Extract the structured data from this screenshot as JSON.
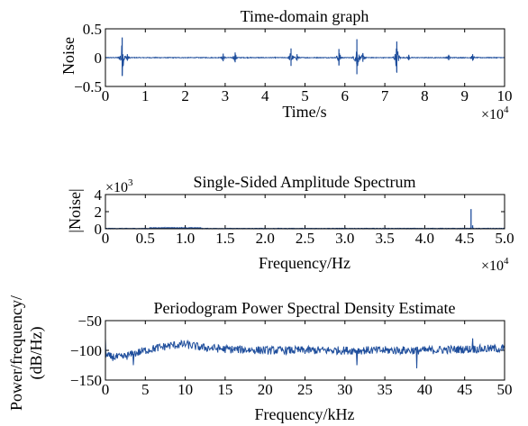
{
  "chart_data": [
    {
      "type": "line",
      "title": "Time-domain graph",
      "xlabel": "Time/s",
      "ylabel": "Noise",
      "xlim": [
        0,
        10
      ],
      "ylim": [
        -0.5,
        0.5
      ],
      "x_ticks": [
        "0",
        "1",
        "2",
        "3",
        "4",
        "5",
        "6",
        "7",
        "8",
        "9",
        "10"
      ],
      "y_ticks": [
        "0.5",
        "0",
        "−0.5"
      ],
      "x_multiplier": "×10",
      "x_multiplier_exp": "4",
      "line_color": "#1f4e9c",
      "grid": false,
      "bursts": [
        {
          "x": 0.42,
          "amp": 0.35
        },
        {
          "x": 0.55,
          "amp": 0.06
        },
        {
          "x": 2.95,
          "amp": 0.07
        },
        {
          "x": 3.25,
          "amp": 0.09
        },
        {
          "x": 4.65,
          "amp": 0.16
        },
        {
          "x": 4.8,
          "amp": 0.06
        },
        {
          "x": 5.85,
          "amp": 0.15
        },
        {
          "x": 6.3,
          "amp": 0.32
        },
        {
          "x": 6.45,
          "amp": 0.08
        },
        {
          "x": 7.3,
          "amp": 0.28
        },
        {
          "x": 7.6,
          "amp": 0.05
        },
        {
          "x": 8.6,
          "amp": 0.05
        },
        {
          "x": 9.2,
          "amp": 0.06
        }
      ]
    },
    {
      "type": "line",
      "title": "Single-Sided Amplitude Spectrum",
      "xlabel": "Frequency/Hz",
      "ylabel": "|Noise|",
      "xlim": [
        0,
        5.0
      ],
      "ylim": [
        0,
        4
      ],
      "x_ticks": [
        "0",
        "0.5",
        "1.0",
        "1.5",
        "2.0",
        "2.5",
        "3.0",
        "3.5",
        "4.0",
        "4.5",
        "5.0"
      ],
      "y_ticks": [
        "4",
        "2",
        "0"
      ],
      "x_multiplier": "×10",
      "x_multiplier_exp": "4",
      "y_multiplier": "×10",
      "y_multiplier_exp": "3",
      "line_color": "#1f4e9c",
      "grid": false,
      "peaks": [
        {
          "x": 4.58,
          "y": 2.3
        },
        {
          "x": 4.6,
          "y": 0.4
        },
        {
          "x": 0.7,
          "y": 0.12
        },
        {
          "x": 1.0,
          "y": 0.1
        }
      ]
    },
    {
      "type": "line",
      "title": "Periodogram Power Spectral Density Estimate",
      "xlabel": "Frequency/kHz",
      "ylabel": [
        "Power/frequency/",
        "(dB/Hz)"
      ],
      "xlim": [
        0,
        50
      ],
      "ylim": [
        -150,
        -50
      ],
      "x_ticks": [
        "0",
        "5",
        "10",
        "15",
        "20",
        "25",
        "30",
        "35",
        "40",
        "45",
        "50"
      ],
      "y_ticks": [
        "−50",
        "−100",
        "−150"
      ],
      "line_color": "#1f4e9c",
      "grid": false,
      "trend": [
        {
          "x": 0,
          "y": -110
        },
        {
          "x": 2,
          "y": -112
        },
        {
          "x": 5,
          "y": -100
        },
        {
          "x": 8,
          "y": -92
        },
        {
          "x": 10,
          "y": -90
        },
        {
          "x": 12,
          "y": -95
        },
        {
          "x": 15,
          "y": -98
        },
        {
          "x": 20,
          "y": -100
        },
        {
          "x": 25,
          "y": -100
        },
        {
          "x": 30,
          "y": -100
        },
        {
          "x": 35,
          "y": -100
        },
        {
          "x": 40,
          "y": -100
        },
        {
          "x": 45,
          "y": -98
        },
        {
          "x": 50,
          "y": -97
        }
      ],
      "spikes": [
        {
          "x": 0,
          "y": -80
        },
        {
          "x": 46,
          "y": -80
        },
        {
          "x": 3.5,
          "y": -125
        },
        {
          "x": 39,
          "y": -130
        },
        {
          "x": 31.5,
          "y": -125
        }
      ]
    }
  ]
}
